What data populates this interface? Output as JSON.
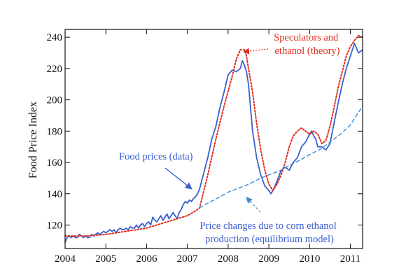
{
  "chart_data": {
    "type": "line",
    "title": "",
    "xlabel": "",
    "ylabel": "Food Price Index",
    "xlim": [
      2004.0,
      2011.3
    ],
    "ylim": [
      105,
      245
    ],
    "x_ticks": [
      "2004",
      "2005",
      "2006",
      "2007",
      "2008",
      "2009",
      "2010",
      "2011"
    ],
    "y_ticks": [
      "120",
      "140",
      "160",
      "180",
      "200",
      "220",
      "240"
    ],
    "grid": false,
    "legend": "none",
    "series": [
      {
        "name": "Food prices (data)",
        "color": "#3a5fd0",
        "style": "solid",
        "x": [
          2004.0,
          2004.05,
          2004.1,
          2004.15,
          2004.2,
          2004.25,
          2004.3,
          2004.35,
          2004.4,
          2004.45,
          2004.5,
          2004.55,
          2004.6,
          2004.65,
          2004.7,
          2004.75,
          2004.8,
          2004.85,
          2004.9,
          2004.95,
          2005.0,
          2005.05,
          2005.1,
          2005.15,
          2005.2,
          2005.25,
          2005.3,
          2005.35,
          2005.4,
          2005.45,
          2005.5,
          2005.55,
          2005.6,
          2005.65,
          2005.7,
          2005.75,
          2005.8,
          2005.85,
          2005.9,
          2005.95,
          2006.0,
          2006.05,
          2006.1,
          2006.15,
          2006.2,
          2006.25,
          2006.3,
          2006.35,
          2006.4,
          2006.45,
          2006.5,
          2006.55,
          2006.6,
          2006.65,
          2006.7,
          2006.75,
          2006.8,
          2006.85,
          2006.9,
          2006.95,
          2007.0,
          2007.05,
          2007.1,
          2007.15,
          2007.2,
          2007.25,
          2007.3,
          2007.4,
          2007.5,
          2007.6,
          2007.7,
          2007.8,
          2007.9,
          2008.0,
          2008.1,
          2008.2,
          2008.3,
          2008.35,
          2008.4,
          2008.45,
          2008.5,
          2008.55,
          2008.6,
          2008.7,
          2008.8,
          2008.9,
          2009.0,
          2009.05,
          2009.1,
          2009.2,
          2009.3,
          2009.4,
          2009.5,
          2009.6,
          2009.7,
          2009.8,
          2009.9,
          2010.0,
          2010.05,
          2010.1,
          2010.15,
          2010.2,
          2010.3,
          2010.4,
          2010.5,
          2010.6,
          2010.7,
          2010.8,
          2010.9,
          2011.0,
          2011.05,
          2011.1,
          2011.15,
          2011.2,
          2011.3
        ],
        "y": [
          109,
          112,
          113,
          112,
          113,
          112,
          112,
          114,
          113,
          112,
          113,
          112,
          112,
          114,
          113,
          114,
          115,
          114,
          115,
          116,
          115,
          116,
          117,
          116,
          117,
          115,
          117,
          118,
          117,
          117,
          118,
          117,
          119,
          118,
          118,
          120,
          118,
          120,
          121,
          119,
          121,
          122,
          120,
          125,
          123,
          122,
          124,
          126,
          123,
          125,
          127,
          124,
          126,
          128,
          126,
          124,
          128,
          130,
          133,
          135,
          134,
          136,
          135,
          137,
          138,
          140,
          143,
          153,
          163,
          175,
          183,
          195,
          205,
          216,
          219,
          218,
          220,
          225,
          222,
          218,
          210,
          195,
          180,
          163,
          152,
          145,
          142,
          140,
          142,
          148,
          155,
          157,
          155,
          160,
          163,
          170,
          173,
          178,
          180,
          177,
          175,
          170,
          170,
          168,
          172,
          185,
          198,
          210,
          220,
          228,
          232,
          236,
          233,
          230,
          232
        ]
      },
      {
        "name": "Speculators and ethanol (theory)",
        "color": "#e03020",
        "style": "dotted",
        "x": [
          2004.0,
          2004.5,
          2005.0,
          2005.5,
          2006.0,
          2006.5,
          2007.0,
          2007.2,
          2007.3,
          2007.5,
          2007.7,
          2007.9,
          2008.1,
          2008.2,
          2008.3,
          2008.4,
          2008.45,
          2008.5,
          2008.6,
          2008.7,
          2008.8,
          2008.9,
          2009.0,
          2009.1,
          2009.2,
          2009.3,
          2009.4,
          2009.5,
          2009.6,
          2009.7,
          2009.8,
          2009.9,
          2010.0,
          2010.1,
          2010.2,
          2010.3,
          2010.4,
          2010.5,
          2010.6,
          2010.7,
          2010.8,
          2010.9,
          2011.0,
          2011.1,
          2011.2,
          2011.3
        ],
        "y": [
          113,
          113,
          114,
          116,
          118,
          122,
          126,
          129,
          131,
          152,
          175,
          196,
          215,
          226,
          232,
          232,
          228,
          220,
          205,
          185,
          168,
          155,
          146,
          142,
          146,
          152,
          160,
          170,
          177,
          180,
          182,
          180,
          178,
          180,
          178,
          172,
          174,
          183,
          195,
          208,
          218,
          228,
          234,
          238,
          241,
          240
        ]
      },
      {
        "name": "Price changes due to corn ethanol production (equilibrium model)",
        "color": "#3a8ad0",
        "style": "dashed",
        "x": [
          2007.3,
          2007.5,
          2007.8,
          2008.0,
          2008.3,
          2008.5,
          2008.8,
          2009.0,
          2009.3,
          2009.5,
          2009.8,
          2010.0,
          2010.3,
          2010.5,
          2010.8,
          2011.0,
          2011.3
        ],
        "y": [
          131,
          134,
          138,
          141,
          144,
          146,
          150,
          152,
          155,
          158,
          162,
          165,
          169,
          173,
          179,
          184,
          196
        ]
      }
    ],
    "annotations": [
      {
        "lines": [
          "Speculators and",
          "ethanol (theory)"
        ],
        "color": "#e03020"
      },
      {
        "lines": [
          "Food prices (data)"
        ],
        "color": "#3a5fd0"
      },
      {
        "lines": [
          "Price changes due to corn ethanol",
          "production (equilibrium model)"
        ],
        "color": "#3a5fd0"
      }
    ]
  }
}
